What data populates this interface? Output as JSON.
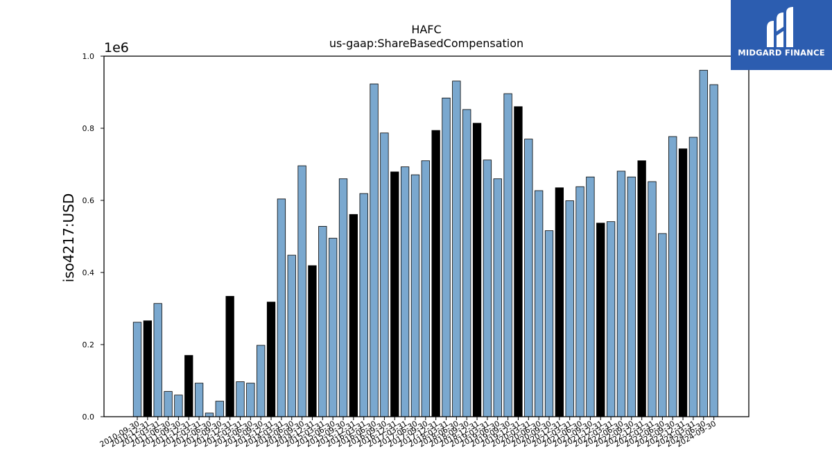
{
  "brand": {
    "name": "MIDGARD FINANCE",
    "bg_color": "#2c5db0"
  },
  "chart_data": {
    "type": "bar",
    "title": "HAFC",
    "subtitle": "us-gaap:ShareBasedCompensation",
    "xlabel": "",
    "ylabel": "iso4217:USD",
    "y_multiplier": "1e6",
    "ylim": [
      0,
      1.0
    ],
    "y_ticks": [
      "0.0",
      "0.2",
      "0.4",
      "0.6",
      "0.8",
      "1.0"
    ],
    "grid": false,
    "colors": {
      "quarter": "#7aa8cf",
      "fiscal_year_end": "#000000",
      "edge": "#000000"
    },
    "categories": [
      "2010-09-30",
      "2010-12-31",
      "2011-03-31",
      "2011-06-30",
      "2011-09-30",
      "2011-12-31",
      "2012-03-31",
      "2012-06-30",
      "2012-09-30",
      "2012-12-31",
      "2013-03-31",
      "2013-06-30",
      "2013-09-30",
      "2013-12-31",
      "2014-03-31",
      "2014-06-30",
      "2014-09-30",
      "2014-12-31",
      "2015-03-31",
      "2015-06-30",
      "2015-09-30",
      "2015-12-31",
      "2016-03-31",
      "2016-06-30",
      "2016-09-30",
      "2016-12-31",
      "2017-03-31",
      "2017-06-30",
      "2017-09-30",
      "2017-12-31",
      "2018-03-31",
      "2018-06-30",
      "2018-09-30",
      "2018-12-31",
      "2019-03-31",
      "2019-06-30",
      "2019-09-30",
      "2019-12-31",
      "2020-03-31",
      "2020-06-30",
      "2020-09-30",
      "2020-12-31",
      "2021-03-31",
      "2021-06-30",
      "2021-09-30",
      "2021-12-31",
      "2022-03-31",
      "2022-06-30",
      "2022-09-30",
      "2022-12-31",
      "2023-03-31",
      "2023-06-30",
      "2023-09-30",
      "2023-12-31",
      "2024-03-31",
      "2024-06-30",
      "2024-09-30"
    ],
    "values": [
      0.262,
      0.266,
      0.314,
      0.07,
      0.06,
      0.17,
      0.093,
      0.01,
      0.043,
      0.334,
      0.097,
      0.093,
      0.198,
      0.318,
      0.604,
      0.448,
      0.696,
      0.419,
      0.528,
      0.495,
      0.66,
      0.561,
      0.619,
      0.923,
      0.787,
      0.679,
      0.693,
      0.671,
      0.71,
      0.794,
      0.884,
      0.931,
      0.852,
      0.814,
      0.712,
      0.66,
      0.896,
      0.86,
      0.77,
      0.627,
      0.516,
      0.635,
      0.599,
      0.638,
      0.665,
      0.537,
      0.541,
      0.681,
      0.665,
      0.71,
      0.652,
      0.508,
      0.777,
      0.743,
      0.775,
      0.961,
      0.921
    ],
    "highlight": [
      false,
      true,
      false,
      false,
      false,
      true,
      false,
      false,
      false,
      true,
      false,
      false,
      false,
      true,
      false,
      false,
      false,
      true,
      false,
      false,
      false,
      true,
      false,
      false,
      false,
      true,
      false,
      false,
      false,
      true,
      false,
      false,
      false,
      true,
      false,
      false,
      false,
      true,
      false,
      false,
      false,
      true,
      false,
      false,
      false,
      true,
      false,
      false,
      false,
      true,
      false,
      false,
      false,
      true,
      false,
      false,
      false
    ]
  }
}
